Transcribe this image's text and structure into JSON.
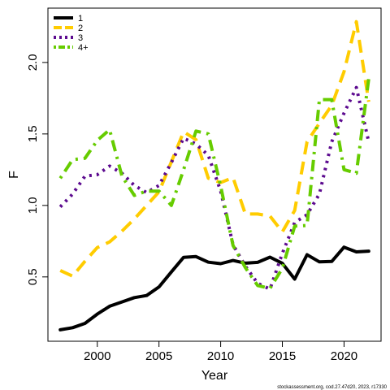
{
  "chart_data": {
    "type": "line",
    "xlabel": "Year",
    "ylabel": "F",
    "xlim": [
      1996,
      2023
    ],
    "ylim": [
      0.05,
      2.38
    ],
    "x_ticks": [
      2000,
      2005,
      2010,
      2015,
      2020
    ],
    "y_ticks": [
      0.5,
      1.0,
      1.5,
      2.0
    ],
    "y_tick_labels": [
      "0.5",
      "1.0",
      "1.5",
      "2.0"
    ],
    "legend_position": "top-left",
    "grid": false,
    "x": [
      1997,
      1998,
      1999,
      2000,
      2001,
      2002,
      2003,
      2004,
      2005,
      2006,
      2007,
      2008,
      2009,
      2010,
      2011,
      2012,
      2013,
      2014,
      2015,
      2016,
      2017,
      2018,
      2019,
      2020,
      2021,
      2022
    ],
    "series": [
      {
        "name": "1",
        "color": "#000000",
        "dash": "solid",
        "values": [
          0.13,
          0.145,
          0.175,
          0.24,
          0.295,
          0.325,
          0.355,
          0.37,
          0.43,
          0.535,
          0.637,
          0.642,
          0.603,
          0.593,
          0.615,
          0.596,
          0.602,
          0.638,
          0.595,
          0.485,
          0.655,
          0.605,
          0.608,
          0.708,
          0.675,
          0.68
        ]
      },
      {
        "name": "2",
        "color": "#FFCC00",
        "dash": "dashed",
        "values": [
          0.545,
          0.505,
          0.61,
          0.705,
          0.745,
          0.82,
          0.905,
          1.0,
          1.095,
          1.305,
          1.515,
          1.46,
          1.19,
          1.16,
          1.195,
          0.94,
          0.94,
          0.925,
          0.815,
          0.965,
          1.445,
          1.575,
          1.7,
          1.935,
          2.285,
          1.725
        ]
      },
      {
        "name": "3",
        "color": "#5C0A8F",
        "dash": "dotted",
        "values": [
          0.99,
          1.08,
          1.205,
          1.215,
          1.275,
          1.225,
          1.14,
          1.09,
          1.14,
          1.3,
          1.47,
          1.43,
          1.35,
          1.1,
          0.725,
          0.575,
          0.455,
          0.415,
          0.665,
          0.88,
          0.935,
          1.08,
          1.445,
          1.645,
          1.825,
          1.445
        ]
      },
      {
        "name": "4+",
        "color": "#66CC00",
        "dash": "dotdash",
        "values": [
          1.19,
          1.32,
          1.33,
          1.455,
          1.53,
          1.205,
          1.07,
          1.1,
          1.1,
          1.0,
          1.25,
          1.52,
          1.5,
          1.135,
          0.72,
          0.565,
          0.44,
          0.42,
          0.56,
          0.855,
          0.86,
          1.74,
          1.74,
          1.25,
          1.225,
          1.885
        ]
      }
    ]
  },
  "credit_text": "stockassessment.org, cod.27.47d20, 2023, r17330"
}
